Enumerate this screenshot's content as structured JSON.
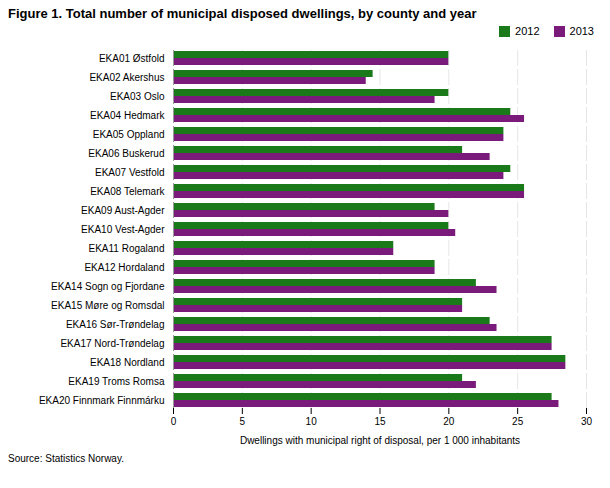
{
  "chart_data": {
    "type": "bar",
    "orientation": "horizontal",
    "title": "Figure 1. Total number of municipal disposed dwellings, by county and year",
    "categories": [
      "EKA01 Østfold",
      "EKA02 Akershus",
      "EKA03 Oslo",
      "EKA04 Hedmark",
      "EKA05 Oppland",
      "EKA06 Buskerud",
      "EKA07 Vestfold",
      "EKA08 Telemark",
      "EKA09 Aust-Agder",
      "EKA10 Vest-Agder",
      "EKA11 Rogaland",
      "EKA12 Hordaland",
      "EKA14 Sogn og Fjordane",
      "EKA15 Møre og Romsdal",
      "EKA16 Sør-Trøndelag",
      "EKA17 Nord-Trøndelag",
      "EKA18 Nordland",
      "EKA19 Troms Romsa",
      "EKA20 Finnmark Finnmárku"
    ],
    "series": [
      {
        "name": "2012",
        "color": "#1a7a1a",
        "values": [
          20.0,
          14.5,
          20.0,
          24.5,
          24.0,
          21.0,
          24.5,
          25.5,
          19.0,
          20.0,
          16.0,
          19.0,
          22.0,
          21.0,
          23.0,
          27.5,
          28.5,
          21.0,
          27.5
        ]
      },
      {
        "name": "2013",
        "color": "#7a1a7a",
        "values": [
          20.0,
          14.0,
          19.0,
          25.5,
          24.0,
          23.0,
          24.0,
          25.5,
          20.0,
          20.5,
          16.0,
          19.0,
          23.5,
          21.0,
          23.5,
          27.5,
          28.5,
          22.0,
          28.0
        ]
      }
    ],
    "xlabel": "Dwellings with municipal right of disposal, per 1 000 inhabitants",
    "xlim": [
      0,
      30
    ],
    "xticks": [
      0,
      5,
      10,
      15,
      20,
      25,
      30
    ],
    "grid": true,
    "legend": "right",
    "caption": "Source: Statistics Norway."
  }
}
